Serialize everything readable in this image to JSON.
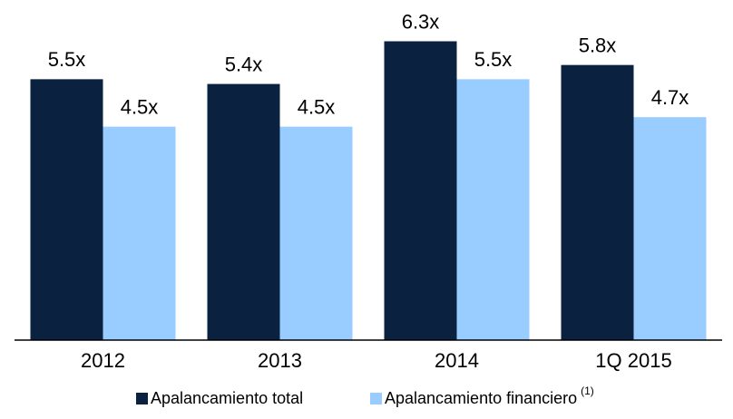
{
  "chart_data": {
    "type": "bar",
    "categories": [
      "2012",
      "2013",
      "2014",
      "1Q 2015"
    ],
    "series": [
      {
        "name": "Apalancamiento total",
        "color": "#0a2240",
        "values": [
          5.5,
          5.4,
          6.3,
          5.8
        ],
        "value_labels": [
          "5.5x",
          "5.4x",
          "6.3x",
          "5.8x"
        ]
      },
      {
        "name": "Apalancamiento financiero",
        "color": "#99ccff",
        "values": [
          4.5,
          4.5,
          5.5,
          4.7
        ],
        "value_labels": [
          "4.5x",
          "4.5x",
          "5.5x",
          "4.7x"
        ]
      }
    ],
    "legend_footnote": "(1)",
    "ylim": [
      0,
      7
    ]
  }
}
